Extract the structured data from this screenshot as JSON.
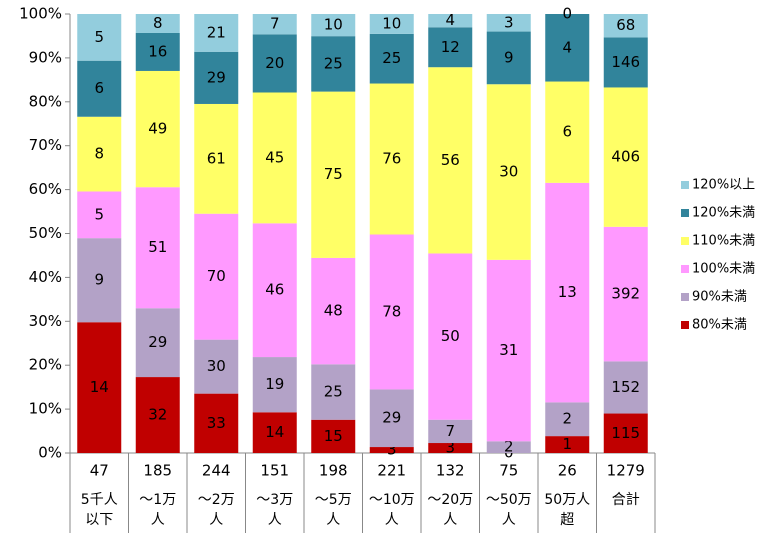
{
  "chart_data": {
    "type": "percent_stacked_bar",
    "categories": [
      [
        "5千人",
        "以下"
      ],
      [
        "～1万",
        "人"
      ],
      [
        "～2万",
        "人"
      ],
      [
        "～3万",
        "人"
      ],
      [
        "～5万",
        "人"
      ],
      [
        "～10万",
        "人"
      ],
      [
        "～20万",
        "人"
      ],
      [
        "～50万",
        "人"
      ],
      [
        "50万人",
        "超"
      ],
      [
        "合計"
      ]
    ],
    "totals": [
      47,
      185,
      244,
      151,
      198,
      221,
      132,
      75,
      26,
      1279
    ],
    "series": [
      {
        "name": "80%未満",
        "color": "#c00000",
        "values": [
          14,
          32,
          33,
          14,
          15,
          3,
          3,
          0,
          1,
          115
        ]
      },
      {
        "name": "90%未満",
        "color": "#b3a2c7",
        "values": [
          9,
          29,
          30,
          19,
          25,
          29,
          7,
          2,
          2,
          152
        ]
      },
      {
        "name": "100%未満",
        "color": "#ff99ff",
        "values": [
          5,
          51,
          70,
          46,
          48,
          78,
          50,
          31,
          13,
          392
        ]
      },
      {
        "name": "110%未満",
        "color": "#ffff66",
        "values": [
          8,
          49,
          61,
          45,
          75,
          76,
          56,
          30,
          6,
          406
        ]
      },
      {
        "name": "120%未満",
        "color": "#31849b",
        "values": [
          6,
          16,
          29,
          20,
          25,
          25,
          12,
          9,
          4,
          146
        ]
      },
      {
        "name": "120%以上",
        "color": "#93cddd",
        "values": [
          5,
          8,
          21,
          7,
          10,
          10,
          4,
          3,
          0,
          68
        ]
      }
    ],
    "ylim": [
      0,
      100
    ],
    "yticks": [
      {
        "value": 0,
        "label": "0%"
      },
      {
        "value": 10,
        "label": "10%"
      },
      {
        "value": 20,
        "label": "20%"
      },
      {
        "value": 30,
        "label": "30%"
      },
      {
        "value": 40,
        "label": "40%"
      },
      {
        "value": 50,
        "label": "50%"
      },
      {
        "value": 60,
        "label": "60%"
      },
      {
        "value": 70,
        "label": "70%"
      },
      {
        "value": 80,
        "label": "80%"
      },
      {
        "value": 90,
        "label": "90%"
      },
      {
        "value": 100,
        "label": "100%"
      }
    ],
    "legend": "right"
  }
}
